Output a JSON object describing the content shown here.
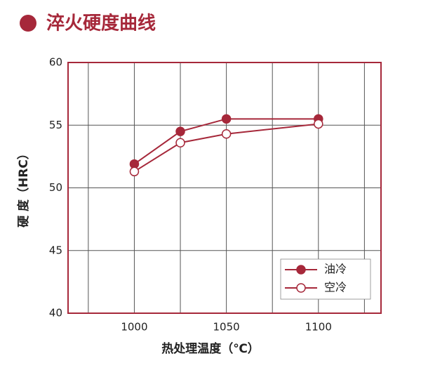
{
  "chart_data": {
    "type": "line",
    "title": "淬火硬度曲线",
    "x_label": "热处理温度（℃）",
    "y_label": "硬 度（HRC）",
    "x": [
      1000,
      1025,
      1050,
      1100
    ],
    "series": [
      {
        "name": "油冷",
        "color": "#a6283a",
        "marker": "filled",
        "values": [
          51.9,
          54.5,
          55.5,
          55.5
        ]
      },
      {
        "name": "空冷",
        "color": "#a6283a",
        "marker": "hollow",
        "values": [
          51.3,
          53.6,
          54.3,
          55.1
        ]
      }
    ],
    "xlim": [
      964,
      1134
    ],
    "xticks": [
      1000,
      1050,
      1100
    ],
    "xgrid": [
      975,
      1000,
      1025,
      1050,
      1075,
      1100,
      1125
    ],
    "ylim": [
      40,
      60
    ],
    "yticks": [
      40,
      45,
      50,
      55,
      60
    ],
    "grid": true,
    "legend": "lower-right",
    "frame_color": "#a6283a"
  }
}
